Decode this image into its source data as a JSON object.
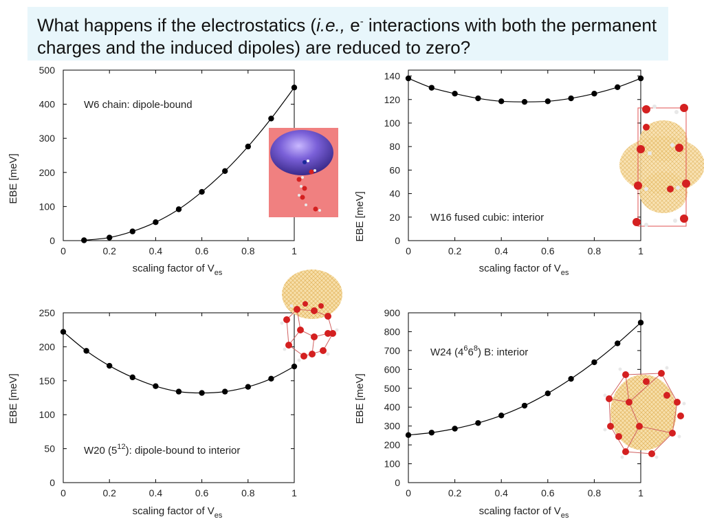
{
  "slide": {
    "title_a": "What happens if the electrostatics (",
    "title_ie": "i.e.,",
    "title_b": " e",
    "title_sup": "-",
    "title_c": " interactions with both the permanent charges and the induced dipoles) are reduced to zero?"
  },
  "chart_data": [
    {
      "type": "line",
      "annotation": "W6 chain: dipole-bound",
      "xlabel_main": "scaling factor of V",
      "xlabel_sub": "es",
      "ylabel": "EBE [meV]",
      "xlim": [
        0,
        1
      ],
      "ylim": [
        0,
        500
      ],
      "xticks": [
        0,
        0.2,
        0.4,
        0.6,
        0.8,
        1
      ],
      "xtick_labels": [
        "0",
        "0.2",
        "0.4",
        "0.6",
        "0.8",
        "1"
      ],
      "yticks": [
        0,
        100,
        200,
        300,
        400,
        500
      ],
      "ytick_labels": [
        "0",
        "100",
        "200",
        "300",
        "400",
        "500"
      ],
      "x": [
        0.09,
        0.2,
        0.3,
        0.4,
        0.5,
        0.6,
        0.7,
        0.8,
        0.9,
        1.0
      ],
      "y": [
        1,
        9,
        27,
        54,
        92,
        143,
        204,
        276,
        358,
        449
      ],
      "markers": true,
      "grid": false
    },
    {
      "type": "line",
      "annotation": "W16 fused cubic: interior",
      "xlabel_main": "scaling factor of V",
      "xlabel_sub": "es",
      "ylabel": "EBE [meV]",
      "xlim": [
        0,
        1
      ],
      "ylim": [
        0,
        145
      ],
      "xticks": [
        0,
        0.2,
        0.4,
        0.6,
        0.8,
        1
      ],
      "xtick_labels": [
        "0",
        "0.2",
        "0.4",
        "0.6",
        "0.8",
        "1"
      ],
      "yticks": [
        0,
        20,
        40,
        60,
        80,
        100,
        120,
        140
      ],
      "ytick_labels": [
        "0",
        "20",
        "40",
        "60",
        "80",
        "100",
        "120",
        "140"
      ],
      "x": [
        0,
        0.1,
        0.2,
        0.3,
        0.4,
        0.5,
        0.6,
        0.7,
        0.8,
        0.9,
        1.0
      ],
      "y": [
        138,
        130,
        125,
        121,
        118.5,
        118,
        118.5,
        121,
        125,
        130.5,
        138
      ],
      "markers": true,
      "grid": false
    },
    {
      "type": "line",
      "annotation_a": "W20 (5",
      "annotation_sup": "12",
      "annotation_b": "): dipole-bound to interior",
      "xlabel_main": "scaling factor of V",
      "xlabel_sub": "es",
      "ylabel": "EBE [meV]",
      "xlim": [
        0,
        1
      ],
      "ylim": [
        0,
        250
      ],
      "xticks": [
        0,
        0.2,
        0.4,
        0.6,
        0.8,
        1
      ],
      "xtick_labels": [
        "0",
        "0.2",
        "0.4",
        "0.6",
        "0.8",
        "1"
      ],
      "yticks": [
        0,
        50,
        100,
        150,
        200,
        250
      ],
      "ytick_labels": [
        "0",
        "50",
        "100",
        "150",
        "200",
        "250"
      ],
      "x": [
        0,
        0.1,
        0.2,
        0.3,
        0.4,
        0.5,
        0.6,
        0.7,
        0.8,
        0.9,
        1.0
      ],
      "y": [
        222,
        194,
        172,
        155,
        142,
        134,
        132,
        134,
        141,
        153,
        171
      ],
      "markers": true,
      "grid": false
    },
    {
      "type": "line",
      "annotation_a": "W24 (4",
      "annotation_sup1": "6",
      "annotation_mid": "6",
      "annotation_sup2": "8",
      "annotation_b": ") B: interior",
      "xlabel_main": "scaling factor of V",
      "xlabel_sub": "es",
      "ylabel": "EBE [meV]",
      "xlim": [
        0,
        1
      ],
      "ylim": [
        0,
        900
      ],
      "xticks": [
        0,
        0.2,
        0.4,
        0.6,
        0.8,
        1
      ],
      "xtick_labels": [
        "0",
        "0.2",
        "0.4",
        "0.6",
        "0.8",
        "1"
      ],
      "yticks": [
        0,
        100,
        200,
        300,
        400,
        500,
        600,
        700,
        800,
        900
      ],
      "ytick_labels": [
        "0",
        "100",
        "200",
        "300",
        "400",
        "500",
        "600",
        "700",
        "800",
        "900"
      ],
      "x": [
        0,
        0.1,
        0.2,
        0.3,
        0.4,
        0.5,
        0.6,
        0.7,
        0.8,
        0.9,
        1.0
      ],
      "y": [
        252,
        265,
        286,
        316,
        356,
        408,
        473,
        550,
        638,
        738,
        848
      ],
      "markers": true,
      "grid": false
    }
  ],
  "images": {
    "w6_icon": "dipole-orbital-icon",
    "w16_icon": "cubic-cluster-icon",
    "w20_icon": "cage-cluster-icon",
    "w24_icon": "interior-cluster-icon",
    "colors": {
      "title_bg": "#e8f6fb",
      "marker": "#000000",
      "orbital_purple": "#6a52c8",
      "orbital_panel_bg": "#f08080",
      "mesh_orange": "#f2c97a",
      "oxygen_red": "#d42020",
      "hydrogen_white": "#e8e8e8"
    }
  }
}
